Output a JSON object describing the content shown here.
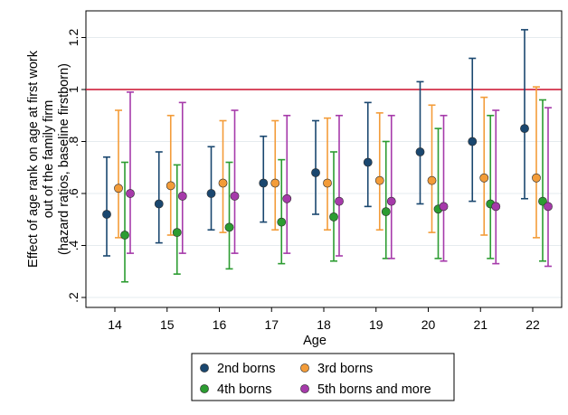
{
  "chart_data": {
    "type": "scatter",
    "subtype": "point estimates with confidence intervals",
    "x": [
      14,
      15,
      16,
      17,
      18,
      19,
      20,
      21,
      22
    ],
    "xlabel": "Age",
    "ylabel_lines": [
      "Effect of age rank on age at first work",
      "out of the family firm",
      "(hazard ratios, baseline firstborn)"
    ],
    "ylim": [
      0.18,
      1.25
    ],
    "yticks": [
      0.2,
      0.4,
      0.6,
      0.8,
      1.0,
      1.2
    ],
    "ytick_labels": [
      ".2",
      ".4",
      ".6",
      ".8",
      "1",
      "1.2"
    ],
    "xticks": [
      14,
      15,
      16,
      17,
      18,
      19,
      20,
      21,
      22
    ],
    "xtick_labels": [
      "14",
      "15",
      "16",
      "17",
      "18",
      "19",
      "20",
      "21",
      "22"
    ],
    "reference_line": {
      "y": 1.0,
      "color": "#cc0f2c"
    },
    "grid": "horizontal",
    "legend_position": "bottom",
    "series": [
      {
        "name": "2nd borns",
        "color": "#1a476f",
        "values": [
          0.52,
          0.56,
          0.6,
          0.64,
          0.68,
          0.72,
          0.76,
          0.8,
          0.85
        ],
        "lower": [
          0.36,
          0.41,
          0.46,
          0.49,
          0.52,
          0.55,
          0.56,
          0.57,
          0.58
        ],
        "upper": [
          0.74,
          0.76,
          0.78,
          0.82,
          0.88,
          0.95,
          1.03,
          1.12,
          1.23
        ]
      },
      {
        "name": "3rd borns",
        "color": "#f39c39",
        "values": [
          0.62,
          0.63,
          0.64,
          0.64,
          0.64,
          0.65,
          0.65,
          0.66,
          0.66
        ],
        "lower": [
          0.43,
          0.44,
          0.45,
          0.46,
          0.46,
          0.46,
          0.45,
          0.44,
          0.43
        ],
        "upper": [
          0.92,
          0.9,
          0.88,
          0.88,
          0.89,
          0.91,
          0.94,
          0.97,
          1.01
        ]
      },
      {
        "name": "4th borns",
        "color": "#2c9c31",
        "values": [
          0.44,
          0.45,
          0.47,
          0.49,
          0.51,
          0.53,
          0.54,
          0.56,
          0.57
        ],
        "lower": [
          0.26,
          0.29,
          0.31,
          0.33,
          0.34,
          0.35,
          0.35,
          0.35,
          0.34
        ],
        "upper": [
          0.72,
          0.71,
          0.72,
          0.73,
          0.76,
          0.8,
          0.85,
          0.9,
          0.96
        ]
      },
      {
        "name": "5th borns and more",
        "color": "#a63aaa",
        "values": [
          0.6,
          0.59,
          0.59,
          0.58,
          0.57,
          0.57,
          0.55,
          0.55,
          0.55
        ],
        "lower": [
          0.37,
          0.37,
          0.37,
          0.37,
          0.36,
          0.35,
          0.34,
          0.33,
          0.32
        ],
        "upper": [
          0.99,
          0.95,
          0.92,
          0.9,
          0.9,
          0.9,
          0.9,
          0.92,
          0.93
        ]
      }
    ],
    "legend": [
      "2nd borns",
      "3rd borns",
      "4th borns",
      "5th borns and more"
    ]
  }
}
